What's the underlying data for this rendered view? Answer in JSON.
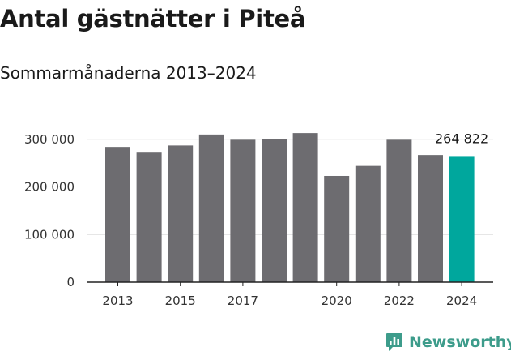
{
  "title": "Antal gästnätter i Piteå",
  "subtitle": "Sommarmånaderna 2013–2024",
  "brand": {
    "name": "Newsworthy",
    "icon": "bar-chart-speech-icon",
    "color": "#3d9c8b"
  },
  "chart_data": {
    "type": "bar",
    "categories": [
      "2013",
      "2014",
      "2015",
      "2016",
      "2017",
      "2018",
      "2019",
      "2020",
      "2021",
      "2022",
      "2023",
      "2024"
    ],
    "values": [
      284000,
      272000,
      287000,
      310000,
      299000,
      300000,
      313000,
      223000,
      244000,
      299000,
      267000,
      264822
    ],
    "ylim": [
      0,
      320000
    ],
    "yticks": [
      0,
      100000,
      200000,
      300000
    ],
    "ytick_labels": [
      "0",
      "100 000",
      "200 000",
      "300 000"
    ],
    "xtick_labels": [
      {
        "category": "2013",
        "label": "2013"
      },
      {
        "category": "2015",
        "label": "2015"
      },
      {
        "category": "2017",
        "label": "2017"
      },
      {
        "category": "2020",
        "label": "2020"
      },
      {
        "category": "2022",
        "label": "2022"
      },
      {
        "category": "2024",
        "label": "2024"
      }
    ],
    "data_labels": [
      {
        "category": "2024",
        "label": "264 822"
      }
    ],
    "highlight_category": "2024",
    "colors": {
      "bar": "#6d6c70",
      "highlight": "#00a79d",
      "grid": "#dddddd",
      "axis": "#222222"
    },
    "grid": true,
    "legend": "none"
  }
}
